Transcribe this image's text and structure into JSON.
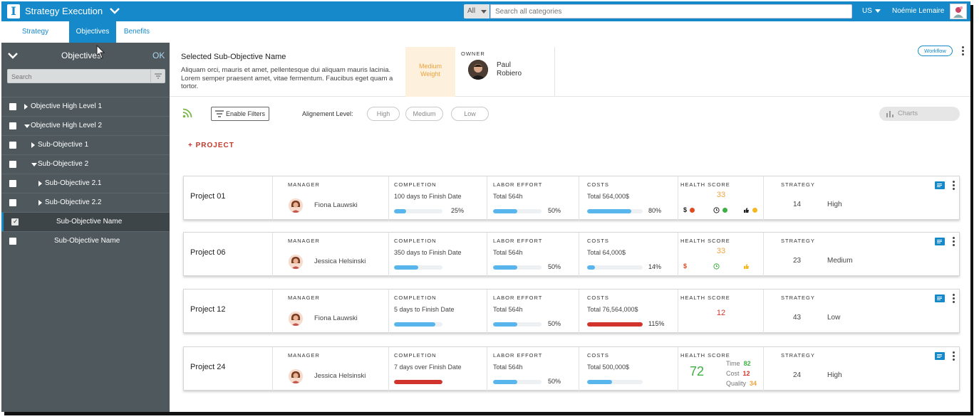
{
  "app": {
    "title": "Strategy Execution",
    "search_category": "All",
    "search_placeholder": "Search all categories",
    "region": "US",
    "user_name": "Noémie Lemaire"
  },
  "tabs": [
    {
      "label": "Strategy",
      "active": false
    },
    {
      "label": "Objectives",
      "active": true
    },
    {
      "label": "Benefits",
      "active": false
    }
  ],
  "sidebar": {
    "title": "Objectives",
    "ok_label": "OK",
    "search_placeholder": "Search",
    "items": [
      {
        "label": "Objective High Level 1",
        "level": 0,
        "expanded": false,
        "has_children": true,
        "checked": false
      },
      {
        "label": "Objective High Level 2",
        "level": 0,
        "expanded": true,
        "has_children": true,
        "checked": false
      },
      {
        "label": "Sub-Objective 1",
        "level": 1,
        "expanded": false,
        "has_children": true,
        "checked": false
      },
      {
        "label": "Sub-Objective 2",
        "level": 1,
        "expanded": true,
        "has_children": true,
        "checked": false
      },
      {
        "label": "Sub-Objective 2.1",
        "level": 2,
        "expanded": false,
        "has_children": true,
        "checked": false
      },
      {
        "label": "Sub-Objective 2.2",
        "level": 2,
        "expanded": false,
        "has_children": true,
        "checked": false
      },
      {
        "label": "Sub-Objective Name",
        "level": 3,
        "expanded": false,
        "has_children": false,
        "checked": true
      },
      {
        "label": "Sub-Objective Name",
        "level": 3,
        "expanded": false,
        "has_children": false,
        "checked": false
      }
    ]
  },
  "selected": {
    "title": "Selected Sub-Objective Name",
    "description": "Aliquam orci, mauris et amet, pellentesque dui aliquam mauris lacinia. Lorem semper praesent amet, vitae fermentum. Faucibus eget quam a tortor.",
    "weight_line1": "Medium",
    "weight_line2": "Weight",
    "owner_label": "OWNER",
    "owner_first": "Paul",
    "owner_last": "Robiero",
    "workflow_label": "Workflow"
  },
  "toolbar": {
    "filters_label": "Enable Filters",
    "alignment_label": "Alignement Level:",
    "levels": [
      "High",
      "Medium",
      "Low"
    ],
    "charts_label": "Charts",
    "add_project_label": "+ PROJECT"
  },
  "column_labels": {
    "manager": "MANAGER",
    "completion": "COMPLETION",
    "labor": "LABOR EFFORT",
    "costs": "COSTS",
    "health": "HEALTH SCORE",
    "strategy": "STRATEGY"
  },
  "projects": [
    {
      "name": "Project 01",
      "manager": "Fiona Lauwski",
      "completion_text": "100 days to Finish Date",
      "completion_pct_label": "25%",
      "completion_fraction": 0.25,
      "completion_overdue": false,
      "labor_text": "Total 564h",
      "labor_pct_label": "50%",
      "labor_fraction": 0.5,
      "costs_text": "Total 564,000$",
      "costs_pct_label": "80%",
      "costs_fraction": 0.8,
      "costs_over": false,
      "health_score": "33",
      "health_color": "#f0a23b",
      "health_indicators": [
        {
          "symbol": "$",
          "color": "#e04a23"
        },
        {
          "symbol": "clock-icon",
          "color": "#3cb043"
        },
        {
          "symbol": "thumb-icon",
          "color": "#f5b820"
        }
      ],
      "strategy_score": "14",
      "strategy_level": "High"
    },
    {
      "name": "Project 06",
      "manager": "Jessica Helsinski",
      "completion_text": "350 days to Finish Date",
      "completion_pct_label": "",
      "completion_fraction": 0.5,
      "completion_overdue": false,
      "labor_text": "Total 564h",
      "labor_pct_label": "50%",
      "labor_fraction": 0.5,
      "costs_text": "Total 64,000$",
      "costs_pct_label": "14%",
      "costs_fraction": 0.14,
      "costs_over": false,
      "health_score": "33",
      "health_color": "#f0a23b",
      "health_indicators": [
        {
          "symbol": "$",
          "color": "#e04a23"
        },
        {
          "symbol": "clock-icon",
          "color": "#3cb043"
        },
        {
          "symbol": "thumb-icon",
          "color": "#f5b820"
        }
      ],
      "strategy_score": "23",
      "strategy_level": "Medium"
    },
    {
      "name": "Project 12",
      "manager": "Fiona Lauwski",
      "completion_text": "5 days to Finish Date",
      "completion_pct_label": "",
      "completion_fraction": 0.85,
      "completion_overdue": false,
      "labor_text": "Total 564h",
      "labor_pct_label": "50%",
      "labor_fraction": 0.5,
      "costs_text": "Total 76,564,000$",
      "costs_pct_label": "115%",
      "costs_fraction": 1.0,
      "costs_over": true,
      "health_score": "12",
      "health_color": "#d0342c",
      "health_indicators": [],
      "strategy_score": "43",
      "strategy_level": "Low"
    },
    {
      "name": "Project 24",
      "manager": "Jessica Helsinski",
      "completion_text": "7 days over Finish Date",
      "completion_pct_label": "",
      "completion_fraction": 1.0,
      "completion_overdue": true,
      "labor_text": "Total 564h",
      "labor_pct_label": "50%",
      "labor_fraction": 0.5,
      "costs_text": "Total 500,000$",
      "costs_pct_label": "",
      "costs_fraction": 0.45,
      "costs_over": false,
      "health_score": "72",
      "health_color": "#3cb043",
      "health_breakdown": [
        {
          "label": "Time",
          "value": "82",
          "color": "#3cb043"
        },
        {
          "label": "Cost",
          "value": "12",
          "color": "#d0342c"
        },
        {
          "label": "Quality",
          "value": "34",
          "color": "#f0a23b"
        }
      ],
      "health_indicators": [],
      "strategy_score": "24",
      "strategy_level": "High"
    }
  ]
}
